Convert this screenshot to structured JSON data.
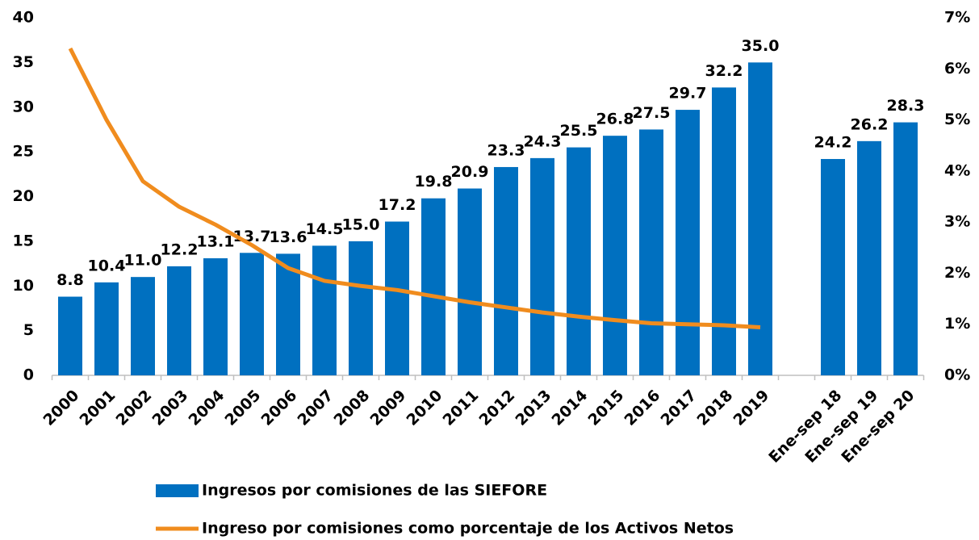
{
  "chart_data": {
    "type": "bar_line",
    "categories": [
      "2000",
      "2001",
      "2002",
      "2003",
      "2004",
      "2005",
      "2006",
      "2007",
      "2008",
      "2009",
      "2010",
      "2011",
      "2012",
      "2013",
      "2014",
      "2015",
      "2016",
      "2017",
      "2018",
      "2019",
      null,
      "Ene-sep 18",
      "Ene-sep 19",
      "Ene-sep 20"
    ],
    "series": [
      {
        "name": "Ingresos por comisiones de las SIEFORE",
        "color": "#0070c0",
        "type": "bar",
        "values": [
          8.8,
          10.4,
          11.0,
          12.2,
          13.1,
          13.7,
          13.6,
          14.5,
          15.0,
          17.2,
          19.8,
          20.9,
          23.3,
          24.3,
          25.5,
          26.8,
          27.5,
          29.7,
          32.2,
          35.0,
          null,
          24.2,
          26.2,
          28.3
        ],
        "value_labels": [
          "8.8",
          "10.4",
          "11.0",
          "12.2",
          "13.1",
          "13.7",
          "13.6",
          "14.5",
          "15.0",
          "17.2",
          "19.8",
          "20.9",
          "23.3",
          "24.3",
          "25.5",
          "26.8",
          "27.5",
          "29.7",
          "32.2",
          "35.0",
          null,
          "24.2",
          "26.2",
          "28.3"
        ]
      },
      {
        "name": "Ingreso por comisiones como porcentaje de los Activos Netos",
        "color": "#f08c1e",
        "type": "line",
        "axis": "y2",
        "values": [
          6.4,
          5.0,
          3.8,
          3.3,
          2.95,
          2.55,
          2.1,
          1.85,
          1.75,
          1.67,
          1.55,
          1.43,
          1.33,
          1.23,
          1.15,
          1.08,
          1.02,
          1.0,
          0.98,
          0.94,
          null,
          null,
          null,
          null
        ]
      }
    ],
    "ylim": [
      0,
      40
    ],
    "yticks": [
      0,
      5,
      10,
      15,
      20,
      25,
      30,
      35,
      40
    ],
    "y2lim": [
      0,
      7
    ],
    "y2ticks": [
      {
        "value": 0,
        "label": "0%"
      },
      {
        "value": 1,
        "label": "1%"
      },
      {
        "value": 2,
        "label": "2%"
      },
      {
        "value": 3,
        "label": "3%"
      },
      {
        "value": 4,
        "label": "4%"
      },
      {
        "value": 5,
        "label": "5%"
      },
      {
        "value": 6,
        "label": "6%"
      },
      {
        "value": 7,
        "label": "7%"
      }
    ],
    "grid": false,
    "legend": "bottom"
  }
}
